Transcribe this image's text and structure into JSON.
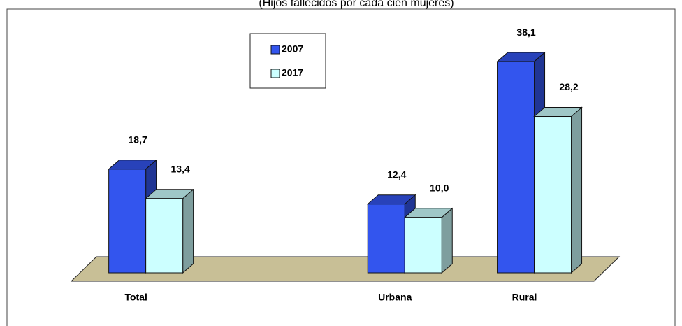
{
  "chart_data": {
    "type": "bar3d",
    "subtitle": "(Hijos fallecidos por cada cien mujeres)",
    "categories": [
      "Total",
      null,
      "Urbana",
      "Rural"
    ],
    "series": [
      {
        "name": "2007",
        "color": "#3355ee",
        "values": [
          18.7,
          null,
          12.4,
          38.1
        ],
        "value_labels": [
          "18,7",
          null,
          "12,4",
          "38,1"
        ]
      },
      {
        "name": "2017",
        "color": "#ccffff",
        "values": [
          13.4,
          null,
          10.0,
          28.2
        ],
        "value_labels": [
          "13,4",
          null,
          "10,0",
          "28,2"
        ]
      }
    ],
    "ylim": [
      0,
      40
    ],
    "legend": "top-left"
  }
}
